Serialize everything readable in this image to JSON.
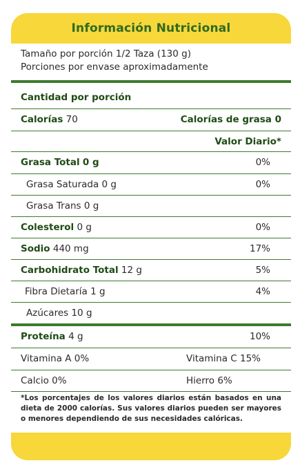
{
  "title": "Información Nutricional",
  "serving": {
    "size": "Tamaño por porción 1/2 Taza (130 g)",
    "servings": "Porciones por envase aproximadamente"
  },
  "amount_header": "Cantidad por porción",
  "calories": {
    "label": "Calorías",
    "value": "70",
    "fat_calories": "Calorías de grasa 0"
  },
  "daily_value_header": "Valor Diario*",
  "nutrients": [
    {
      "label": "Grasa Total",
      "amount": "0 g",
      "dv": "0%"
    },
    {
      "label": "Grasa Saturada",
      "amount": "0 g",
      "dv": "0%"
    },
    {
      "label": "Grasa Trans",
      "amount": "0 g",
      "dv": ""
    },
    {
      "label": "Colesterol",
      "amount": "0 g",
      "dv": "0%"
    },
    {
      "label": "Sodio",
      "amount": "440 mg",
      "dv": "17%"
    },
    {
      "label": "Carbohidrato Total",
      "amount": "12 g",
      "dv": "5%"
    },
    {
      "label": "Fibra Dietaría",
      "amount": "1 g",
      "dv": "4%"
    },
    {
      "label": "Azúcares",
      "amount": "10 g",
      "dv": ""
    },
    {
      "label": "Proteína",
      "amount": "4 g",
      "dv": "10%"
    }
  ],
  "vitamins": [
    {
      "left": "Vitamina A 0%",
      "right": "Vitamina C 15%"
    },
    {
      "left": "Calcio 0%",
      "right": "Hierro 6%"
    }
  ],
  "footnote": "*Los porcentajes de los valores diarios están basados en una dieta de 2000 calorías. Sus valores diarios pueden ser mayores o menores dependiendo de sus necesidades calóricas.",
  "colors": {
    "accent_yellow": "#f7d73a",
    "accent_green": "#3c7a2c",
    "title_green": "#2f6a21"
  }
}
